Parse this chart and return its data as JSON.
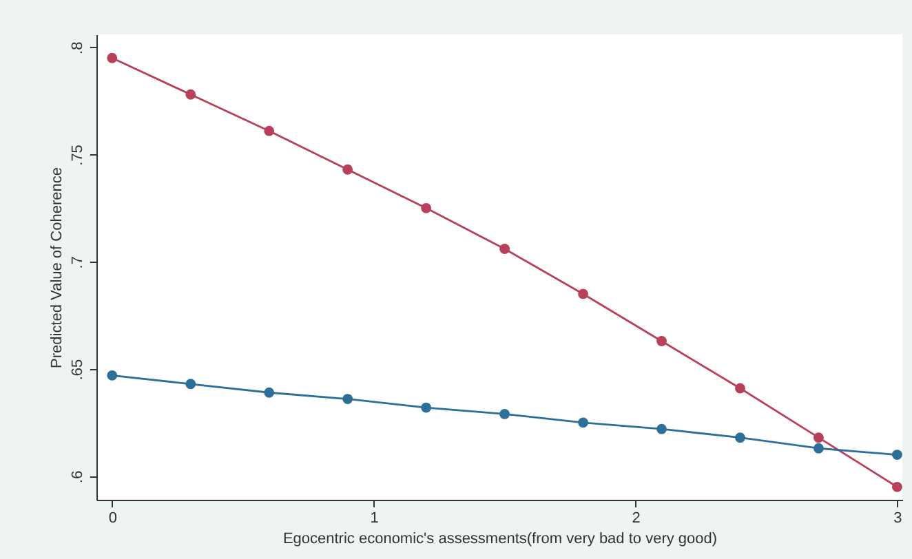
{
  "chart_data": {
    "type": "line",
    "xlabel": "Egocentric economic's assessments(from very bad to very good)",
    "ylabel": "Predicted Value of Coherence",
    "x": [
      0,
      0.3,
      0.6,
      0.9,
      1.2,
      1.5,
      1.8,
      2.1,
      2.4,
      2.7,
      3
    ],
    "series": [
      {
        "color": "#b8405a",
        "values": [
          0.795,
          0.778,
          0.761,
          0.743,
          0.725,
          0.706,
          0.685,
          0.663,
          0.641,
          0.618,
          0.595
        ]
      },
      {
        "color": "#2c6f98",
        "values": [
          0.647,
          0.643,
          0.639,
          0.636,
          0.632,
          0.629,
          0.625,
          0.622,
          0.618,
          0.613,
          0.61
        ]
      }
    ],
    "xlim": [
      -0.06,
      3.02
    ],
    "xticks": [
      0,
      1,
      2,
      3
    ],
    "ylim": [
      0.589,
      0.806
    ],
    "yticks": [
      {
        "value": 0.6,
        "label": ".6"
      },
      {
        "value": 0.65,
        "label": ".65"
      },
      {
        "value": 0.7,
        "label": ".7"
      },
      {
        "value": 0.75,
        "label": ".75"
      },
      {
        "value": 0.8,
        "label": ".8"
      }
    ],
    "grid": false,
    "marker": "circle",
    "line_style": "solid"
  }
}
